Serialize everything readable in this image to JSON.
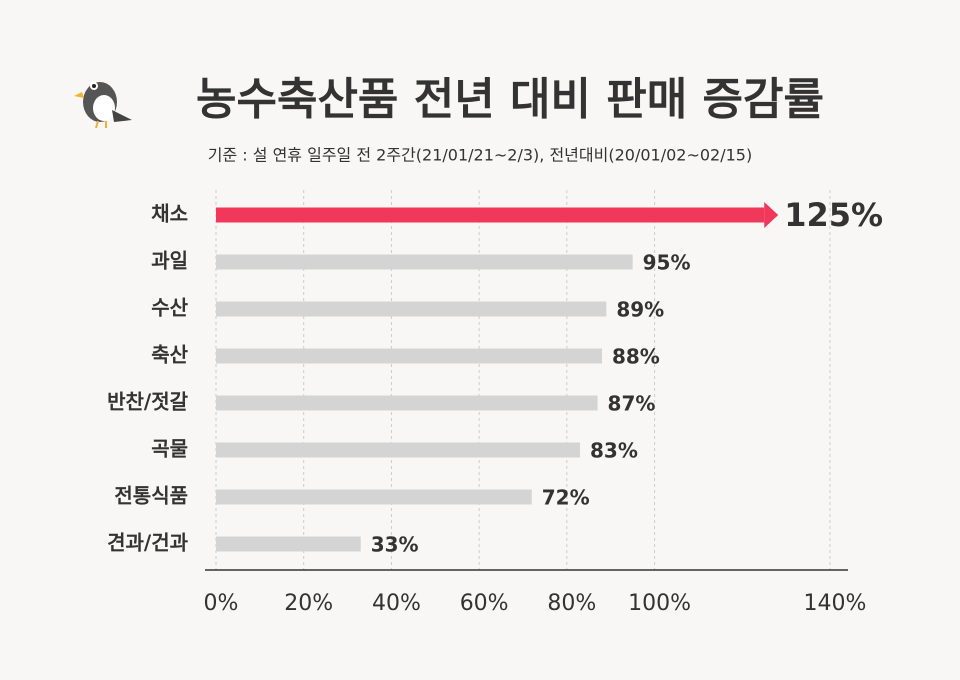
{
  "chart_data": {
    "type": "hbar",
    "title": "농수축산품 전년 대비 판매 증감률",
    "subtitle": "기준 : 설 연휴 일주일 전 2주간(21/01/21~2/3), 전년대비(20/01/02~02/15)",
    "categories": [
      "채소",
      "과일",
      "수산",
      "축산",
      "반찬/젓갈",
      "곡물",
      "전통식품",
      "견과/건과"
    ],
    "values": [
      125,
      95,
      89,
      88,
      87,
      83,
      72,
      33
    ],
    "value_labels": [
      "125%",
      "95%",
      "89%",
      "88%",
      "87%",
      "83%",
      "72%",
      "33%"
    ],
    "colors": [
      "#f2385a",
      "#d4d4d4",
      "#d4d4d4",
      "#d4d4d4",
      "#d4d4d4",
      "#d4d4d4",
      "#d4d4d4",
      "#d4d4d4"
    ],
    "xlim": [
      0,
      140
    ],
    "xticks": [
      {
        "value": 0,
        "label": "0%"
      },
      {
        "value": 20,
        "label": "20%"
      },
      {
        "value": 40,
        "label": "40%"
      },
      {
        "value": 60,
        "label": "60%"
      },
      {
        "value": 80,
        "label": "80%"
      },
      {
        "value": 100,
        "label": "100%"
      },
      {
        "value": 140,
        "label": "140%"
      }
    ],
    "grid": true
  }
}
